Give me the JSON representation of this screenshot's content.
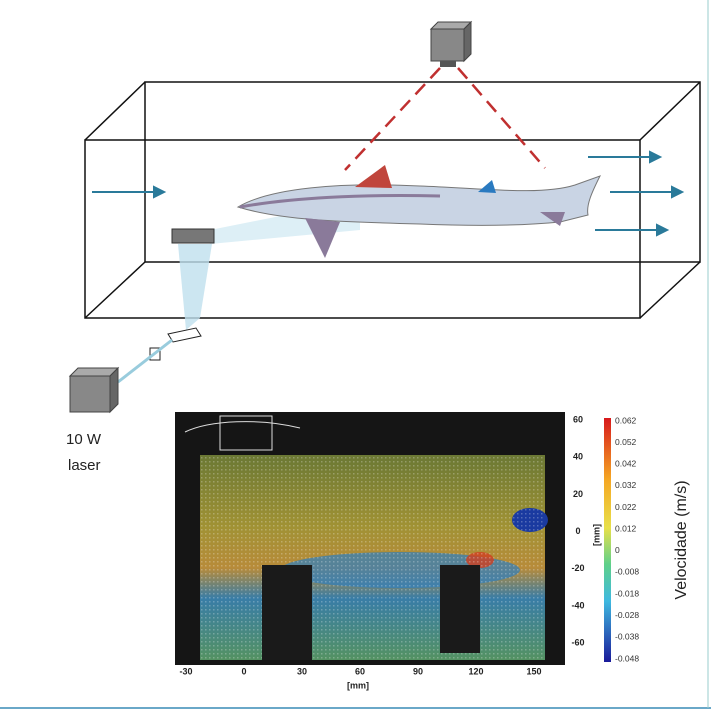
{
  "diagram": {
    "laser_label": [
      "10 W",
      "laser"
    ],
    "piv_plot": {
      "xticks": [
        "-30",
        "0",
        "30",
        "60",
        "90",
        "120",
        "150"
      ],
      "xlabel": "[mm]",
      "yticks": [
        "60",
        "40",
        "20",
        "0",
        "-20",
        "-40",
        "-60"
      ],
      "ylabel": "[mm]",
      "colorbar_ticks": [
        "0.062",
        "0.052",
        "0.042",
        "0.032",
        "0.022",
        "0.012",
        "0",
        "-0.008",
        "-0.018",
        "-0.028",
        "-0.038",
        "-0.048"
      ],
      "colorbar_label": "Velocidade (m/s)"
    }
  }
}
